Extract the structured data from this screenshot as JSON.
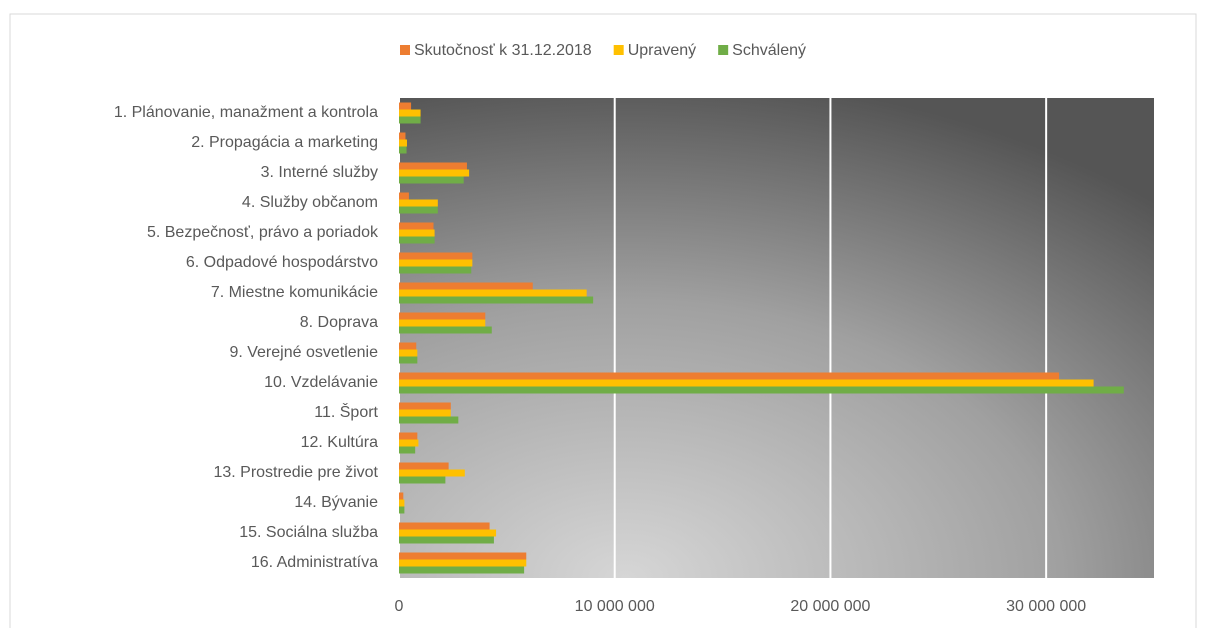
{
  "chart_data": {
    "type": "bar",
    "orientation": "horizontal",
    "categories": [
      "1. Plánovanie, manažment a kontrola",
      "2. Propagácia a marketing",
      "3. Interné služby",
      "4. Služby občanom",
      "5. Bezpečnosť, právo a poriadok",
      "6. Odpadové hospodárstvo",
      "7. Miestne komunikácie",
      "8. Doprava",
      "9. Verejné osvetlenie",
      "10. Vzdelávanie",
      "11. Šport",
      "12. Kultúra",
      "13. Prostredie pre život",
      "14. Bývanie",
      "15. Sociálna služba",
      "16. Administratíva"
    ],
    "series": [
      {
        "name": "Skutočnosť k 31.12.2018",
        "color": "#ed7d31",
        "values": [
          560000,
          300000,
          3150000,
          460000,
          1600000,
          3400000,
          6200000,
          4000000,
          800000,
          30600000,
          2400000,
          850000,
          2300000,
          200000,
          4200000,
          5900000
        ]
      },
      {
        "name": "Upravený",
        "color": "#ffc000",
        "values": [
          1000000,
          370000,
          3250000,
          1800000,
          1650000,
          3400000,
          8700000,
          4000000,
          850000,
          32200000,
          2400000,
          900000,
          3050000,
          250000,
          4500000,
          5900000
        ]
      },
      {
        "name": "Schválený",
        "color": "#70ad47",
        "values": [
          1000000,
          350000,
          3000000,
          1800000,
          1650000,
          3350000,
          9000000,
          4300000,
          850000,
          33600000,
          2750000,
          750000,
          2150000,
          250000,
          4400000,
          5800000
        ]
      }
    ],
    "xlim": [
      0,
      35000000
    ],
    "xticks": [
      0,
      {
        "value": 10000000,
        "label": "10 000 000"
      },
      {
        "value": 20000000,
        "label": "20 000 000"
      },
      {
        "value": 30000000,
        "label": "30 000 000"
      }
    ],
    "grid": true,
    "legend": "top"
  }
}
